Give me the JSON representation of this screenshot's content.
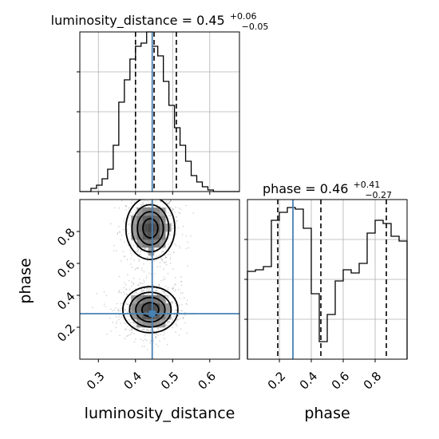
{
  "colors": {
    "truth": "#4682b4",
    "hist": "#000000",
    "grid": "#b0b0b0",
    "quantile": "#000000",
    "density_dark": "#6e6e6e",
    "density_light": "#d0d0d0",
    "scatter": "#9a9a9a"
  },
  "chart_data": [
    {
      "id": "ld-hist",
      "type": "histogram",
      "title_main": "luminosity_distance = 0.45",
      "title_sup": "+0.06",
      "title_sub": "−0.05",
      "x_range": [
        0.25,
        0.68
      ],
      "y_range": [
        0,
        1.0
      ],
      "grid": true,
      "bin_edges": [
        0.25,
        0.265,
        0.28,
        0.295,
        0.31,
        0.325,
        0.34,
        0.355,
        0.37,
        0.385,
        0.4,
        0.415,
        0.43,
        0.445,
        0.46,
        0.475,
        0.49,
        0.505,
        0.52,
        0.535,
        0.55,
        0.565,
        0.58,
        0.595,
        0.61,
        0.625,
        0.64,
        0.655,
        0.68
      ],
      "values": [
        0.0,
        0.0,
        0.02,
        0.04,
        0.08,
        0.14,
        0.29,
        0.56,
        0.7,
        0.83,
        0.91,
        0.93,
        1.0,
        0.91,
        0.85,
        0.69,
        0.54,
        0.4,
        0.29,
        0.19,
        0.1,
        0.06,
        0.03,
        0.01,
        0.0,
        0.0,
        0.0,
        0.0
      ],
      "quantiles": [
        0.4,
        0.45,
        0.51
      ],
      "truth": 0.445,
      "shared_xticks": [
        0.3,
        0.4,
        0.5,
        0.6
      ]
    },
    {
      "id": "phase-hist",
      "type": "histogram",
      "title_main": "phase = 0.46",
      "title_sup": "+0.41",
      "title_sub": "−0.27",
      "xlabel": "phase",
      "x_range": [
        0.0,
        1.0
      ],
      "y_range": [
        0,
        1.0
      ],
      "grid": true,
      "bin_edges": [
        0.0,
        0.05,
        0.1,
        0.15,
        0.2,
        0.25,
        0.3,
        0.35,
        0.4,
        0.45,
        0.5,
        0.55,
        0.6,
        0.65,
        0.7,
        0.75,
        0.8,
        0.85,
        0.9,
        0.95,
        1.0
      ],
      "values": [
        0.55,
        0.56,
        0.58,
        0.87,
        0.92,
        0.95,
        0.94,
        0.82,
        0.41,
        0.11,
        0.28,
        0.49,
        0.56,
        0.54,
        0.6,
        0.79,
        0.87,
        0.85,
        0.77,
        0.74
      ],
      "quantiles": [
        0.19,
        0.46,
        0.87
      ],
      "truth": 0.285,
      "xticks": [
        0.2,
        0.4,
        0.6,
        0.8
      ],
      "xtick_labels": [
        "0.2",
        "0.4",
        "0.6",
        "0.8"
      ]
    },
    {
      "id": "ld-phase-2d",
      "type": "2d-density",
      "xlabel": "luminosity_distance",
      "ylabel": "phase",
      "x_range": [
        0.25,
        0.68
      ],
      "y_range": [
        0.0,
        1.0
      ],
      "xticks": [
        0.3,
        0.4,
        0.5,
        0.6
      ],
      "xtick_labels": [
        "0.3",
        "0.4",
        "0.5",
        "0.6"
      ],
      "yticks": [
        0.2,
        0.4,
        0.6,
        0.8
      ],
      "ytick_labels": [
        "0.2",
        "0.4",
        "0.6",
        "0.8"
      ],
      "truth": [
        0.445,
        0.285
      ],
      "blobs": [
        {
          "cx": 0.44,
          "cy": 0.82,
          "sx": 0.032,
          "sy": 0.095
        },
        {
          "cx": 0.44,
          "cy": 0.31,
          "sx": 0.036,
          "sy": 0.07
        }
      ],
      "contour_levels": [
        0.12,
        0.3,
        0.55,
        0.82
      ]
    }
  ]
}
